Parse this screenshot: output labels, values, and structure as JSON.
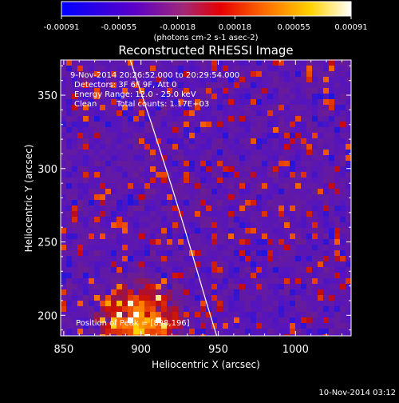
{
  "chart_data": {
    "type": "heatmap",
    "title": "Reconstructed RHESSI Image",
    "xlabel": "Heliocentric X (arcsec)",
    "ylabel": "Heliocentric Y (arcsec)",
    "xlim": [
      848,
      1036
    ],
    "ylim": [
      186,
      374
    ],
    "x_ticks": [
      850,
      900,
      950,
      1000
    ],
    "y_ticks": [
      200,
      250,
      300,
      350
    ],
    "grid": false,
    "colorbar": {
      "min": -0.00091,
      "max": 0.00091,
      "tick_labels": [
        "-0.00091",
        "-0.00055",
        "-0.00018",
        "0.00018",
        "0.00055",
        "0.00091"
      ],
      "tick_values": [
        -0.00091,
        -0.00055,
        -0.00018,
        0.00018,
        0.00055,
        0.00091
      ],
      "unit_label": "(photons cm-2 s-1 asec-2)",
      "colors": [
        "#0000ff",
        "#5a00c8",
        "#a02878",
        "#e60000",
        "#ff7800",
        "#ffd200",
        "#ffffff"
      ]
    },
    "annotations": {
      "time_range": "9-Nov-2014 20:26:52.000 to 20:29:54.000",
      "detectors": "Detectors: 3F 6F 9F, Att 0",
      "energy": "Energy Range: 12.0 - 25.0 keV",
      "clean_prefix": "Clean",
      "counts": "Total counts: 1.17E+03",
      "peak": "Position of Peak = [898,196]"
    },
    "peak": {
      "x": 898,
      "y": 196
    },
    "limb_curve": {
      "x": [
        893,
        900,
        907,
        914,
        921,
        928,
        935,
        942,
        949
      ],
      "y": [
        374,
        352,
        330,
        307,
        284,
        260,
        235,
        210,
        186
      ]
    }
  },
  "footer": {
    "timestamp": "10-Nov-2014 03:12"
  }
}
